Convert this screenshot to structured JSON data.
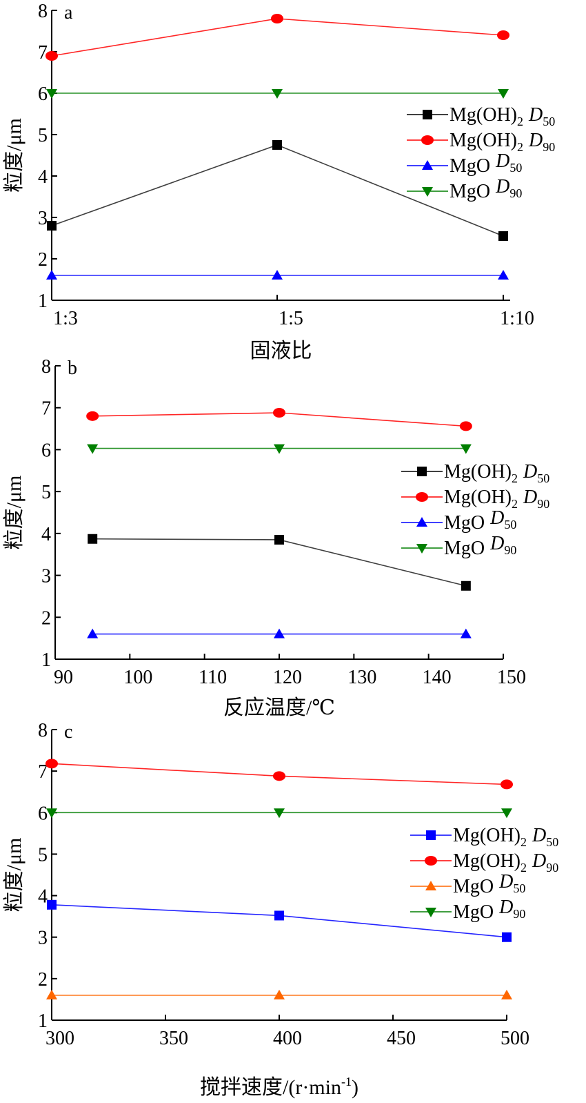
{
  "chart_data": [
    {
      "type": "line",
      "panel_label": "a",
      "xlabel": "固液比",
      "ylabel": "粒度/μm",
      "x_type": "category",
      "categories": [
        "1:3",
        "1:5",
        "1:10"
      ],
      "ylim": [
        1,
        8
      ],
      "yticks": [
        "1",
        "2",
        "3",
        "4",
        "5",
        "6",
        "7",
        "8"
      ],
      "legend_position": "right",
      "series": [
        {
          "name_main": "Mg(OH)",
          "name_sub1": "2",
          "name_d": "D",
          "name_sub2": "50",
          "color": "#000000",
          "marker": "square",
          "values": [
            2.8,
            4.75,
            2.55
          ]
        },
        {
          "name_main": "Mg(OH)",
          "name_sub1": "2",
          "name_d": "D",
          "name_sub2": "90",
          "color": "#ff0000",
          "marker": "circle",
          "values": [
            6.9,
            7.8,
            7.4
          ]
        },
        {
          "name_main": "MgO",
          "name_sub1": "",
          "name_d": "D",
          "name_sub2": "50",
          "color": "#0000ff",
          "marker": "triangle-up",
          "values": [
            1.6,
            1.6,
            1.6
          ]
        },
        {
          "name_main": "MgO",
          "name_sub1": "",
          "name_d": "D",
          "name_sub2": "90",
          "color": "#007f00",
          "marker": "triangle-down",
          "values": [
            6.0,
            6.0,
            6.0
          ]
        }
      ]
    },
    {
      "type": "line",
      "panel_label": "b",
      "xlabel": "反应温度/℃",
      "ylabel": "粒度/μm",
      "x_type": "numeric",
      "x": [
        95,
        120,
        145
      ],
      "xlim": [
        90,
        150
      ],
      "xticks": [
        90,
        100,
        110,
        120,
        130,
        140,
        150
      ],
      "ylim": [
        1,
        8
      ],
      "yticks": [
        "1",
        "2",
        "3",
        "4",
        "5",
        "6",
        "7",
        "8"
      ],
      "legend_position": "right",
      "series": [
        {
          "name_main": "Mg(OH)",
          "name_sub1": "2",
          "name_d": "D",
          "name_sub2": "50",
          "color": "#000000",
          "marker": "square",
          "values": [
            3.87,
            3.85,
            2.75
          ]
        },
        {
          "name_main": "Mg(OH)",
          "name_sub1": "2",
          "name_d": "D",
          "name_sub2": "90",
          "color": "#ff0000",
          "marker": "circle",
          "values": [
            6.8,
            6.88,
            6.56
          ]
        },
        {
          "name_main": "MgO",
          "name_sub1": "",
          "name_d": "D",
          "name_sub2": "50",
          "color": "#0000ff",
          "marker": "triangle-up",
          "values": [
            1.6,
            1.6,
            1.6
          ]
        },
        {
          "name_main": "MgO",
          "name_sub1": "",
          "name_d": "D",
          "name_sub2": "90",
          "color": "#007f00",
          "marker": "triangle-down",
          "values": [
            6.03,
            6.03,
            6.03
          ]
        }
      ]
    },
    {
      "type": "line",
      "panel_label": "c",
      "xlabel_main": "搅拌速度/(r·min",
      "xlabel_sup": "-1",
      "xlabel_end": ")",
      "ylabel": "粒度/μm",
      "x_type": "numeric",
      "x": [
        300,
        400,
        500
      ],
      "xlim": [
        300,
        500
      ],
      "xticks": [
        300,
        350,
        400,
        450,
        500
      ],
      "ylim": [
        1,
        8
      ],
      "yticks": [
        "1",
        "2",
        "3",
        "4",
        "5",
        "6",
        "7",
        "8"
      ],
      "legend_position": "right",
      "series": [
        {
          "name_main": "Mg(OH)",
          "name_sub1": "2",
          "name_d": "D",
          "name_sub2": "50",
          "color": "#0000ff",
          "marker": "square",
          "values": [
            3.78,
            3.52,
            3.0
          ]
        },
        {
          "name_main": "Mg(OH)",
          "name_sub1": "2",
          "name_d": "D",
          "name_sub2": "90",
          "color": "#ff0000",
          "marker": "circle",
          "values": [
            7.18,
            6.88,
            6.68
          ]
        },
        {
          "name_main": "MgO",
          "name_sub1": "",
          "name_d": "D",
          "name_sub2": "50",
          "color": "#ff6600",
          "marker": "triangle-up",
          "values": [
            1.6,
            1.6,
            1.6
          ]
        },
        {
          "name_main": "MgO",
          "name_sub1": "",
          "name_d": "D",
          "name_sub2": "90",
          "color": "#007f00",
          "marker": "triangle-down",
          "values": [
            6.0,
            6.0,
            6.0
          ]
        }
      ]
    }
  ]
}
